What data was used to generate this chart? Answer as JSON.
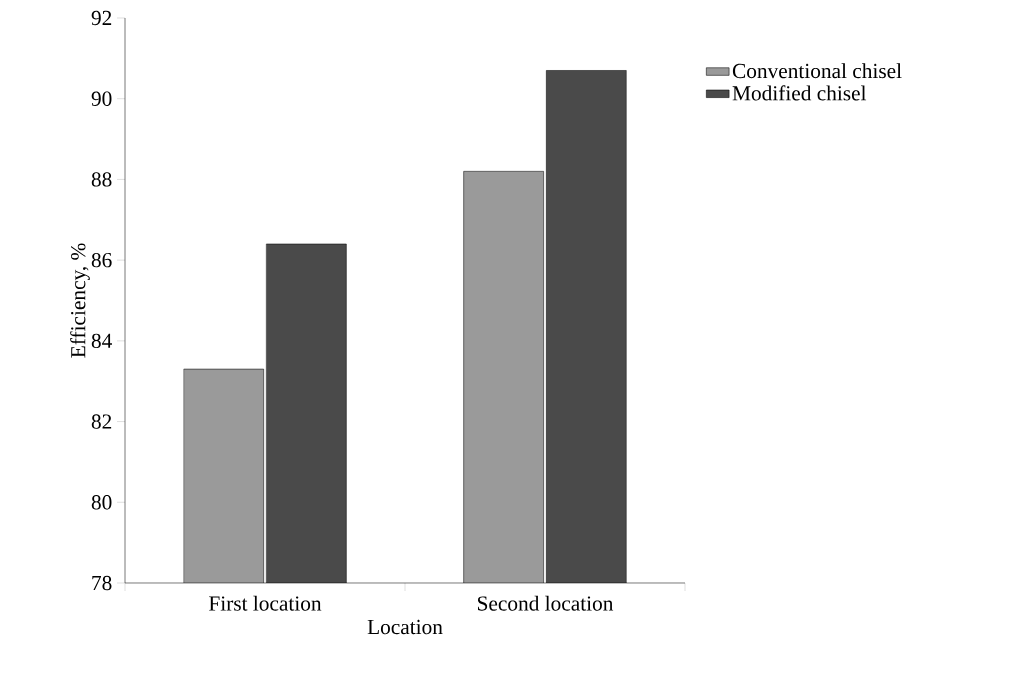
{
  "chart_data": {
    "type": "bar",
    "xlabel": "Location",
    "ylabel": "Efficiency, %",
    "categories": [
      "First location",
      "Second location"
    ],
    "series": [
      {
        "name": "Conventional chisel",
        "color": "#9a9a9a",
        "values": [
          83.3,
          88.2
        ]
      },
      {
        "name": "Modified chisel",
        "color": "#4a4a4a",
        "values": [
          86.4,
          90.7
        ]
      }
    ],
    "ylim": [
      78,
      92
    ],
    "yticks": [
      78,
      80,
      82,
      84,
      86,
      88,
      90,
      92
    ],
    "grid": false,
    "legend": "top right"
  }
}
